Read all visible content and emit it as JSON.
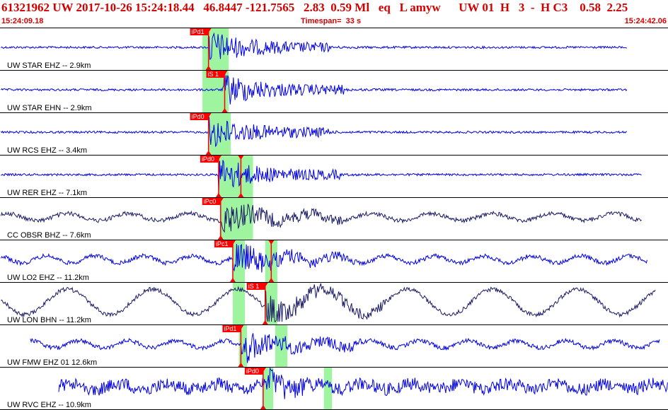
{
  "header": {
    "title": "61321962 UW 2017-10-26 15:24:18.44   46.8447 -121.7565   2.83  0.59 Ml   eq   L amyw      UW 01  H   3  -  H C3    0.58  2.25",
    "start_time": "15:24:09.18",
    "timespan": "Timespan=  33 s",
    "end_time": "15:24:42.06"
  },
  "colors": {
    "header_text": "#d40000",
    "trace_blue": "#0000e6",
    "trace_dark": "#1a1a66",
    "pick": "#ff0000",
    "window": "#9ff59f",
    "label": "#000000"
  },
  "chart_data": {
    "type": "line",
    "title": "61321962 UW 2017-10-26 15:24:18.44",
    "time_range_s": [
      0,
      33
    ],
    "traces": [
      {
        "label": "UW STAR EHZ -- 2.9km",
        "color": "blue",
        "picks": [
          {
            "label": "iPd1",
            "t": 10.3
          }
        ],
        "windows": [
          [
            10.0,
            11.3
          ]
        ],
        "onset_t": 10.3,
        "end_t": 31.0
      },
      {
        "label": "UW STAR EHN -- 2.9km",
        "color": "blue",
        "picks": [
          {
            "label": "iS 1",
            "t": 11.1
          }
        ],
        "windows": [
          [
            10.0,
            11.3
          ]
        ],
        "onset_t": 11.0,
        "end_t": 31.0
      },
      {
        "label": "UW RCS EHZ -- 3.4km",
        "color": "blue",
        "picks": [
          {
            "label": "iPd0",
            "t": 10.3
          }
        ],
        "windows": [
          [
            10.3,
            11.4
          ]
        ],
        "onset_t": 10.3,
        "end_t": 31.0
      },
      {
        "label": "UW RER EHZ -- 7.1km",
        "color": "blue",
        "picks": [
          {
            "label": "iPd0",
            "t": 10.8
          },
          {
            "label": "",
            "t": 11.9
          }
        ],
        "windows": [
          [
            10.8,
            12.5
          ]
        ],
        "onset_t": 10.8,
        "end_t": 31.7
      },
      {
        "label": "CC OBSR BHZ -- 7.6km",
        "color": "dark",
        "picks": [
          {
            "label": "iPc0",
            "t": 10.9
          }
        ],
        "windows": [
          [
            10.9,
            12.5
          ]
        ],
        "onset_t": 10.9,
        "end_t": 31.7
      },
      {
        "label": "UW LO2 EHZ -- 11.2km",
        "color": "blue",
        "picks": [
          {
            "label": "iPc1",
            "t": 11.5
          },
          {
            "label": "",
            "t": 13.4
          }
        ],
        "windows": [
          [
            11.5,
            12.1
          ],
          [
            13.1,
            13.7
          ]
        ],
        "onset_t": 11.5,
        "end_t": 32.0
      },
      {
        "label": "UW LON BHN -- 11.2km",
        "color": "dark",
        "picks": [
          {
            "label": "iS 1",
            "t": 13.1
          }
        ],
        "windows": [
          [
            11.5,
            12.1
          ],
          [
            13.1,
            13.7
          ]
        ],
        "onset_t": 13.1,
        "end_t": 32.4
      },
      {
        "label": "UW FMW EHZ 01 12.6km",
        "color": "blue",
        "picks": [
          {
            "label": "iPd1",
            "t": 11.9
          }
        ],
        "windows": [
          [
            11.8,
            12.2
          ],
          [
            13.6,
            14.2
          ]
        ],
        "onset_t": 11.9,
        "end_t": 32.6
      },
      {
        "label": "UW RVC EHZ -- 10.9km",
        "color": "blue",
        "picks": [
          {
            "label": "iPd0",
            "t": 13.0
          }
        ],
        "windows": [
          [
            13.0,
            13.5
          ],
          [
            16.0,
            16.4
          ]
        ],
        "onset_t": 13.2,
        "end_t": 33.0
      }
    ]
  }
}
